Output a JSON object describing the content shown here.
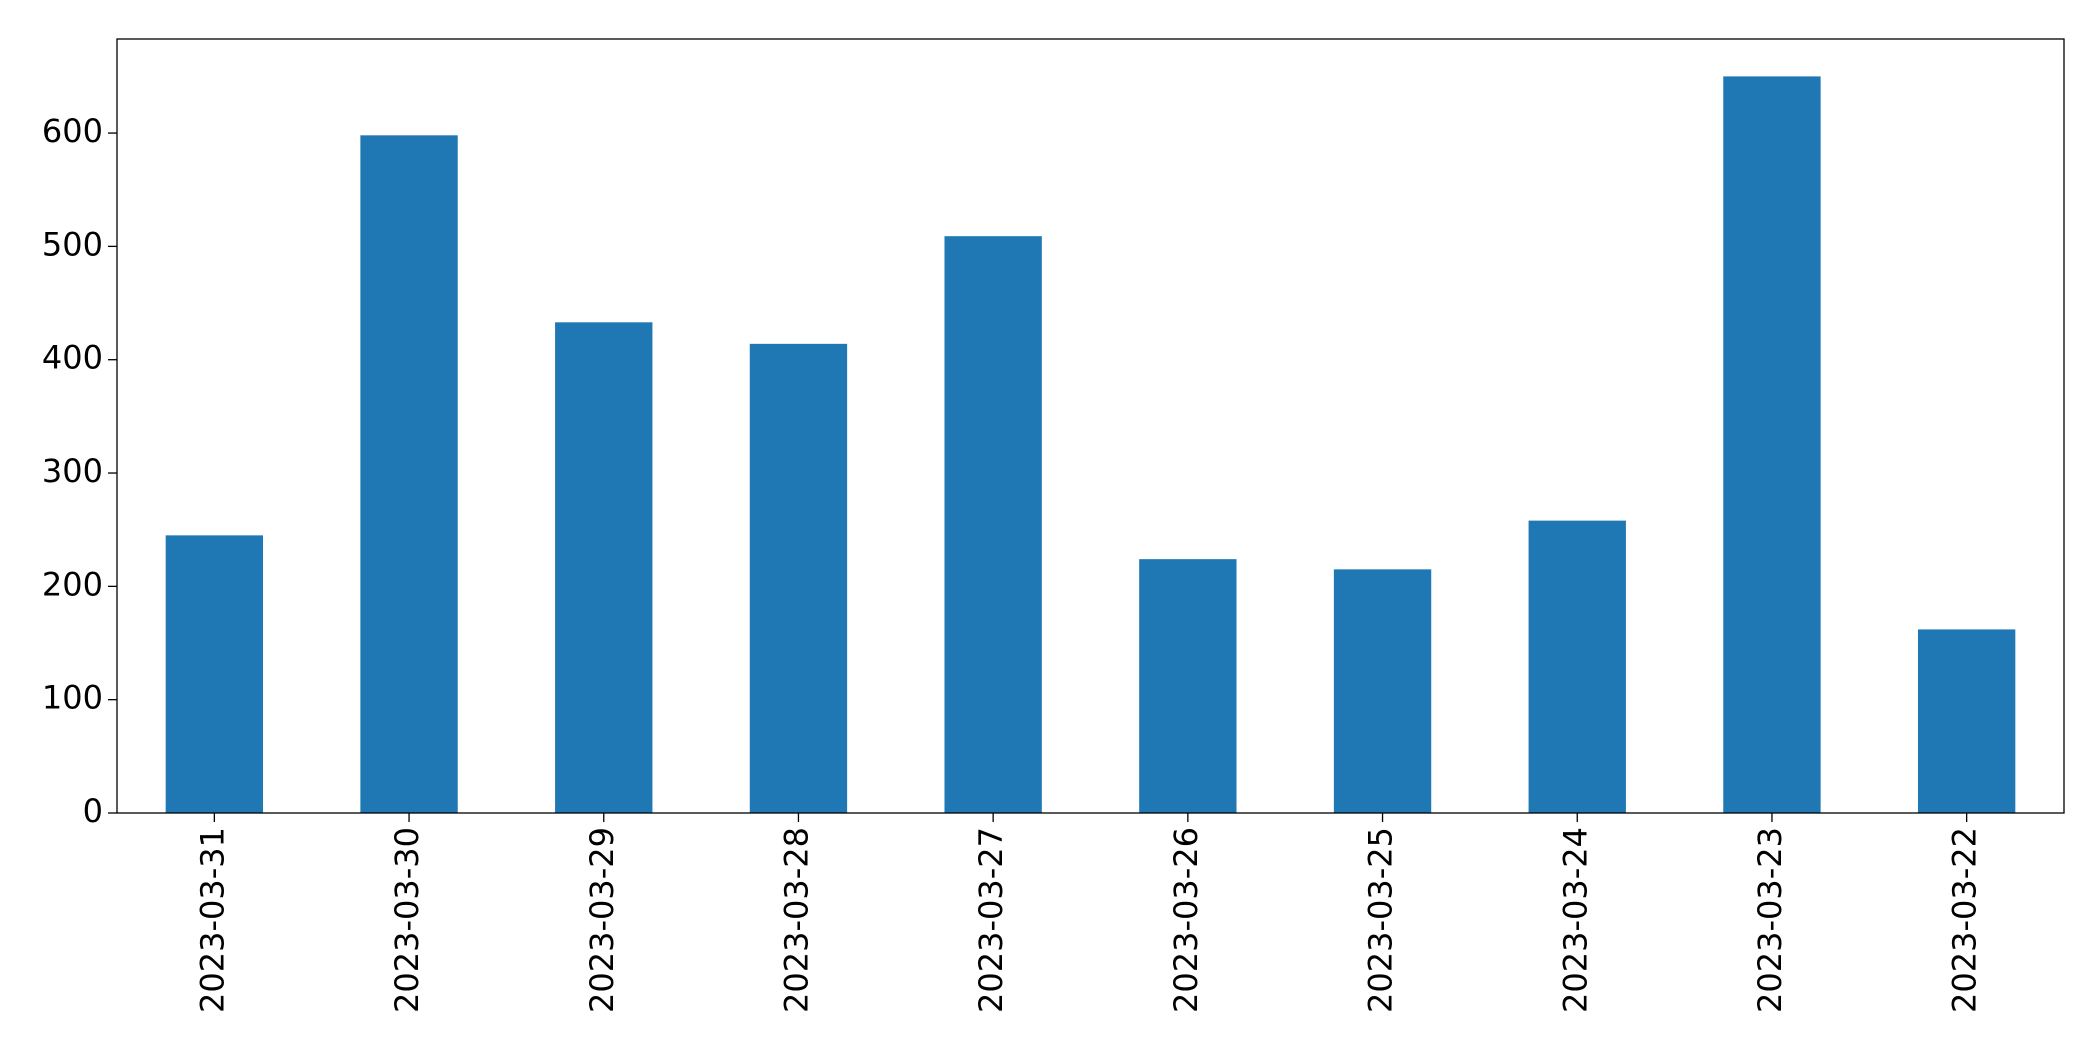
{
  "chart_data": {
    "type": "bar",
    "categories": [
      "2023-03-31",
      "2023-03-30",
      "2023-03-29",
      "2023-03-28",
      "2023-03-27",
      "2023-03-26",
      "2023-03-25",
      "2023-03-24",
      "2023-03-23",
      "2023-03-22"
    ],
    "values": [
      245,
      598,
      433,
      414,
      509,
      224,
      215,
      258,
      650,
      162
    ],
    "color": "#1f77b4",
    "ylim": [
      0,
      683
    ],
    "yticks": [
      0,
      100,
      200,
      300,
      400,
      500,
      600
    ],
    "grid": false
  }
}
